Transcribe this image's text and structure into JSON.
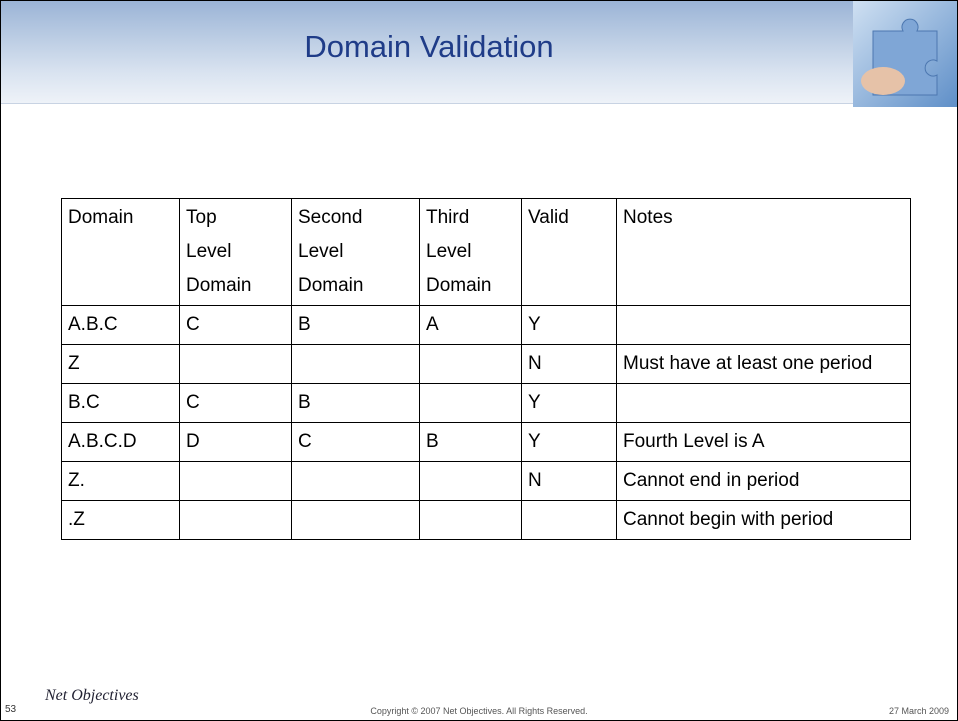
{
  "header": {
    "title": "Domain Validation"
  },
  "table": {
    "columns": [
      "Domain",
      "Top Level Domain",
      "Second Level Domain",
      "Third Level Domain",
      "Valid",
      "Notes"
    ],
    "rows": [
      [
        "A.B.C",
        "C",
        "B",
        "A",
        "Y",
        null
      ],
      [
        "Z",
        null,
        null,
        null,
        "N",
        "Must have at least one period"
      ],
      [
        "B.C",
        "C",
        "B",
        null,
        "Y",
        null
      ],
      [
        "A.B.C.D",
        "D",
        "C",
        "B",
        "Y",
        "Fourth Level is A"
      ],
      [
        "Z.",
        null,
        null,
        null,
        "N",
        "Cannot end in period"
      ],
      [
        ".Z",
        null,
        null,
        null,
        null,
        "Cannot begin with period"
      ]
    ]
  },
  "footer": {
    "page_number": "53",
    "logo": "Net Objectives",
    "copyright": "Copyright © 2007 Net Objectives. All Rights Reserved.",
    "date": "27 March 2009"
  }
}
